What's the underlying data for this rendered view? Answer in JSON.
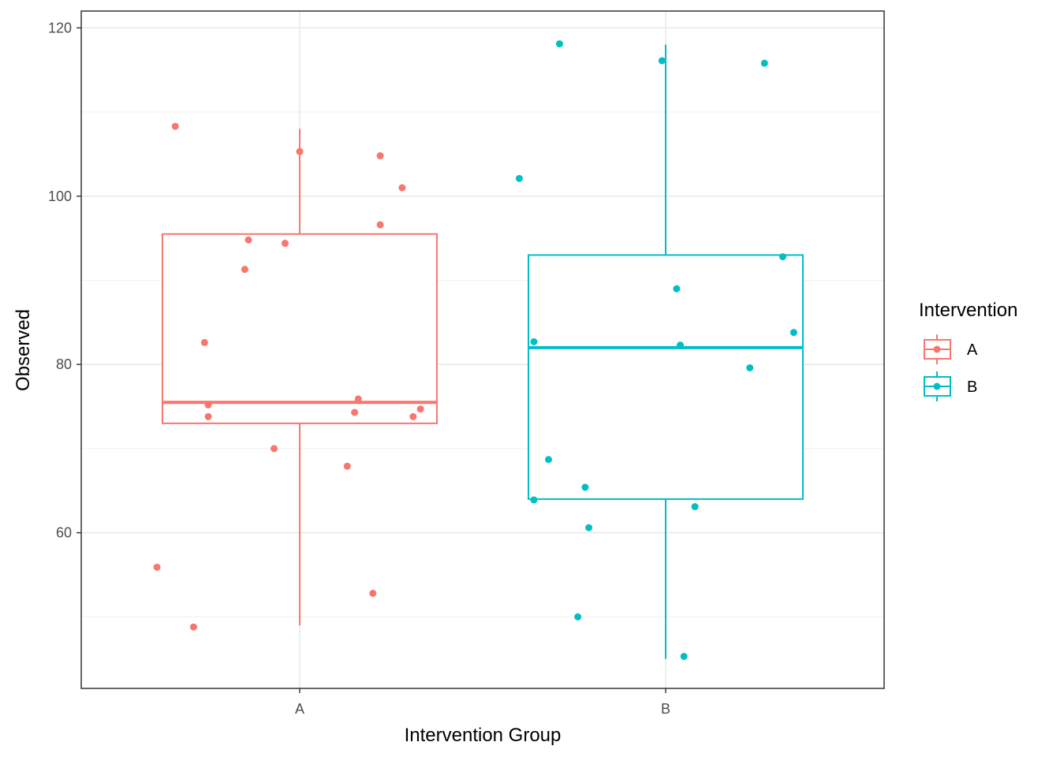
{
  "chart_data": {
    "type": "box",
    "xlabel": "Intervention Group",
    "ylabel": "Observed",
    "ylim": [
      41.5,
      122
    ],
    "y_ticks": [
      60,
      80,
      100,
      120
    ],
    "categories": [
      "A",
      "B"
    ],
    "grid": true,
    "legend": {
      "title": "Intervention",
      "placement": "right",
      "items": [
        {
          "label": "A",
          "color": "#F8766D"
        },
        {
          "label": "B",
          "color": "#00BFC4"
        }
      ]
    },
    "series": [
      {
        "group": "A",
        "color": "#F8766D",
        "box": {
          "min": 49,
          "q1": 73,
          "median": 75.5,
          "q3": 95.5,
          "max": 108
        },
        "points": [
          {
            "x": 0.66,
            "y": 108.3
          },
          {
            "x": 1.0,
            "y": 105.3
          },
          {
            "x": 1.22,
            "y": 104.8
          },
          {
            "x": 1.28,
            "y": 101.0
          },
          {
            "x": 1.22,
            "y": 96.6
          },
          {
            "x": 0.86,
            "y": 94.8
          },
          {
            "x": 0.96,
            "y": 94.4
          },
          {
            "x": 0.85,
            "y": 91.3
          },
          {
            "x": 0.74,
            "y": 82.6
          },
          {
            "x": 1.16,
            "y": 75.9
          },
          {
            "x": 0.75,
            "y": 75.2
          },
          {
            "x": 1.33,
            "y": 74.7
          },
          {
            "x": 1.15,
            "y": 74.3
          },
          {
            "x": 0.75,
            "y": 73.8
          },
          {
            "x": 1.31,
            "y": 73.8
          },
          {
            "x": 0.93,
            "y": 70.0
          },
          {
            "x": 1.13,
            "y": 67.9
          },
          {
            "x": 0.61,
            "y": 55.9
          },
          {
            "x": 1.2,
            "y": 52.8
          },
          {
            "x": 0.71,
            "y": 48.8
          }
        ]
      },
      {
        "group": "B",
        "color": "#00BFC4",
        "box": {
          "min": 45,
          "q1": 64,
          "median": 82,
          "q3": 93,
          "max": 118
        },
        "points": [
          {
            "x": 1.71,
            "y": 118.1
          },
          {
            "x": 1.99,
            "y": 116.1
          },
          {
            "x": 2.27,
            "y": 115.8
          },
          {
            "x": 1.6,
            "y": 102.1
          },
          {
            "x": 2.32,
            "y": 92.8
          },
          {
            "x": 2.03,
            "y": 89.0
          },
          {
            "x": 2.35,
            "y": 83.8
          },
          {
            "x": 1.64,
            "y": 82.7
          },
          {
            "x": 2.04,
            "y": 82.3
          },
          {
            "x": 2.23,
            "y": 79.6
          },
          {
            "x": 1.68,
            "y": 68.7
          },
          {
            "x": 1.78,
            "y": 65.4
          },
          {
            "x": 1.64,
            "y": 63.9
          },
          {
            "x": 2.08,
            "y": 63.1
          },
          {
            "x": 1.79,
            "y": 60.6
          },
          {
            "x": 1.76,
            "y": 50.0
          },
          {
            "x": 2.05,
            "y": 45.3
          }
        ]
      }
    ]
  }
}
